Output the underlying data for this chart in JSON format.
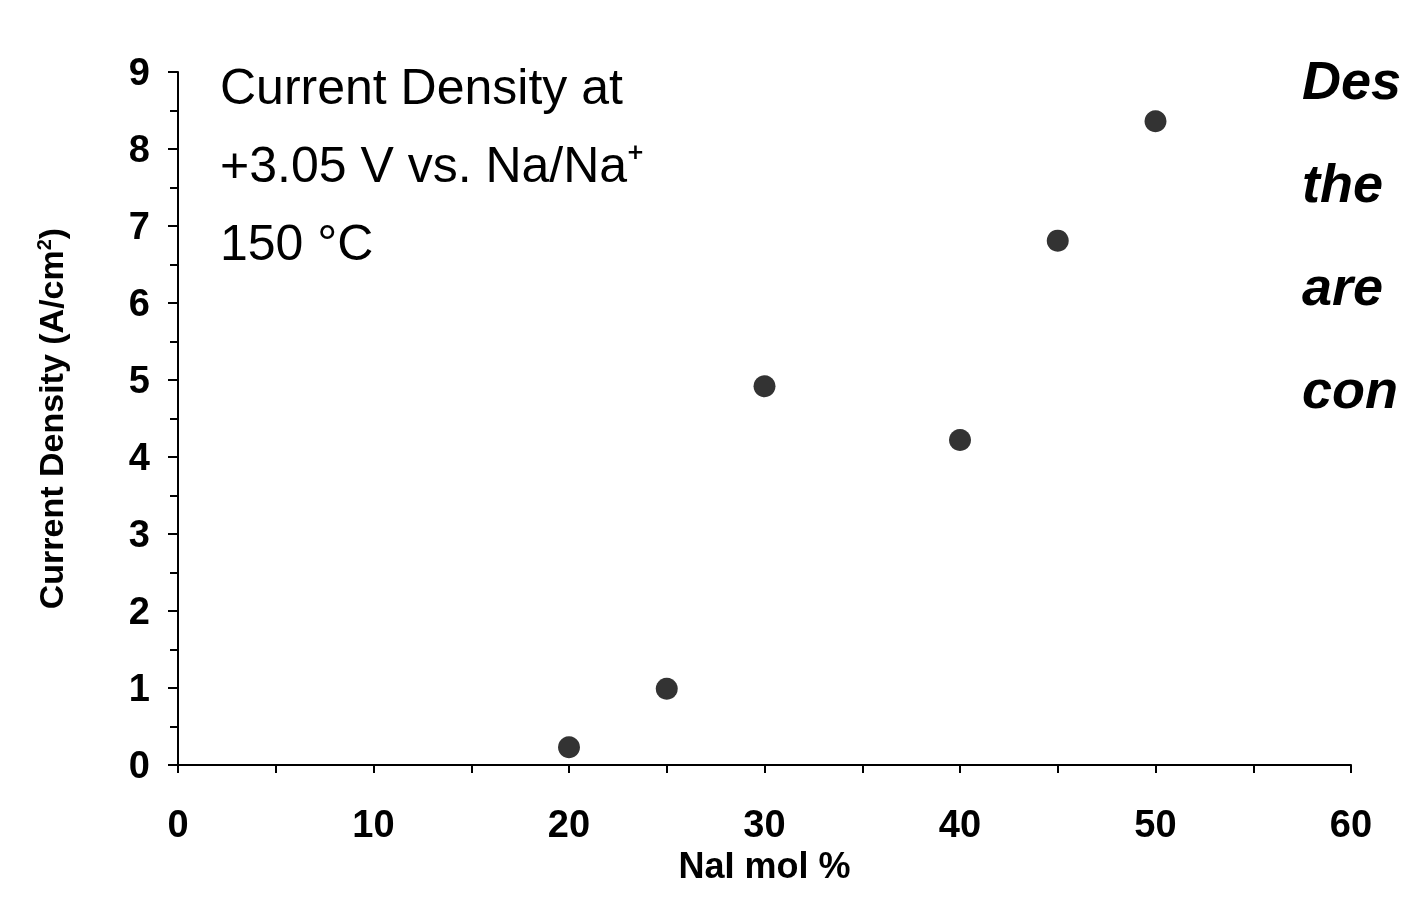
{
  "chart_data": {
    "type": "scatter",
    "xlabel": "NaI mol %",
    "ylabel": "Current Density (A/cm$^{2}$)",
    "x": [
      20,
      25,
      30,
      40,
      45,
      50
    ],
    "values": [
      0.23,
      0.99,
      4.92,
      4.22,
      6.81,
      8.36
    ],
    "color": "#000000",
    "marker": "circle",
    "xlim": [
      0,
      60
    ],
    "xticks": [
      0,
      10,
      20,
      30,
      40,
      50,
      60
    ],
    "ylim": [
      0,
      9
    ],
    "yticks": [
      0,
      1,
      2,
      3,
      4,
      5,
      6,
      7,
      8,
      9
    ],
    "annotations": [
      "Current Density at\n+3.05 V vs. Na/Na⁺\n150 °C",
      "Des\nthe\nare\ncon"
    ]
  }
}
